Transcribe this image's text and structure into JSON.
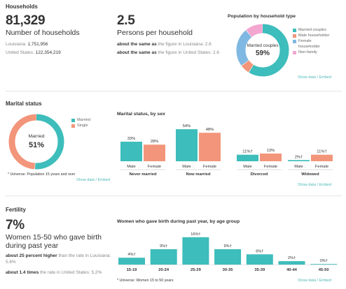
{
  "households": {
    "section_title": "Households",
    "count": {
      "value": "81,329",
      "label": "Number of households"
    },
    "count_comparisons": [
      {
        "label": "Louisiana:",
        "value": "1,751,956"
      },
      {
        "label": "United States:",
        "value": "122,354,219"
      }
    ],
    "persons": {
      "value": "2.5",
      "label": "Persons per household"
    },
    "persons_comparisons": [
      {
        "lead": "about the same as",
        "rest": " the figure in Louisiana: 2.6"
      },
      {
        "lead": "about the same as",
        "rest": " the figure in United States: 2.6"
      }
    ],
    "show_data": "Show data / Embed"
  },
  "household_type": {
    "title": "Population by household type",
    "center_label": "Married couples",
    "center_value": "59%",
    "legend": [
      "Married couples",
      "Male householder",
      "Female householder",
      "Non-family"
    ],
    "show_data": "Show data / Embed"
  },
  "marital": {
    "section_title": "Marital status",
    "center_label": "Married",
    "center_value": "51%",
    "legend": [
      "Married",
      "Single"
    ],
    "universe": "* Universe: Population 15 years and over",
    "show_data": "Show data / Embed"
  },
  "marital_by_sex": {
    "title": "Marital status, by sex",
    "sub_labels": [
      "Male",
      "Female"
    ],
    "show_data": "Show data / Embed"
  },
  "fertility": {
    "section_title": "Fertility",
    "value": "7%",
    "label": "Women 15-50 who gave birth during past year",
    "comparisons": [
      {
        "lead": "about 25 percent higher",
        "rest": " than the rate in Louisiana: 5.6%"
      },
      {
        "lead": "about 1.4 times",
        "rest": " the rate in United States: 5.2%"
      }
    ],
    "chart_title": "Women who gave birth during past year, by age group",
    "universe": "* Universe: Women 15 to 50 years",
    "show_data": "Show data / Embed"
  },
  "colors": {
    "teal": "#3dbdbb",
    "salmon": "#f2957a",
    "blue": "#7fb8e2",
    "pink": "#f2a6d0",
    "link": "#4fb8b8"
  },
  "chart_data": [
    {
      "type": "pie",
      "title": "Population by household type",
      "categories": [
        "Married couples",
        "Male householder",
        "Female householder",
        "Non-family"
      ],
      "values": [
        59,
        6,
        24,
        11
      ]
    },
    {
      "type": "pie",
      "title": "",
      "categories": [
        "Married",
        "Single"
      ],
      "values": [
        51,
        49
      ]
    },
    {
      "type": "bar",
      "title": "Marital status, by sex",
      "categories": [
        "Never married",
        "Now married",
        "Divorced",
        "Widowed"
      ],
      "series": [
        {
          "name": "Male",
          "values": [
            33,
            54,
            11,
            2
          ],
          "labels": [
            "33%",
            "54%",
            "11%†",
            "2%†"
          ]
        },
        {
          "name": "Female",
          "values": [
            28,
            48,
            13,
            11
          ],
          "labels": [
            "28%",
            "48%",
            "13%",
            "11%†"
          ]
        }
      ],
      "ylim": [
        0,
        60
      ]
    },
    {
      "type": "bar",
      "title": "Women who gave birth during past year, by age group",
      "categories": [
        "15-19",
        "20-24",
        "25-29",
        "30-35",
        "35-39",
        "40-44",
        "45-50"
      ],
      "values": [
        4,
        9,
        16,
        9,
        6,
        2,
        0
      ],
      "labels": [
        "4%†",
        "9%†",
        "16%†",
        "9%†",
        "6%†",
        "2%†",
        "0%†"
      ],
      "ylim": [
        0,
        18
      ]
    }
  ]
}
